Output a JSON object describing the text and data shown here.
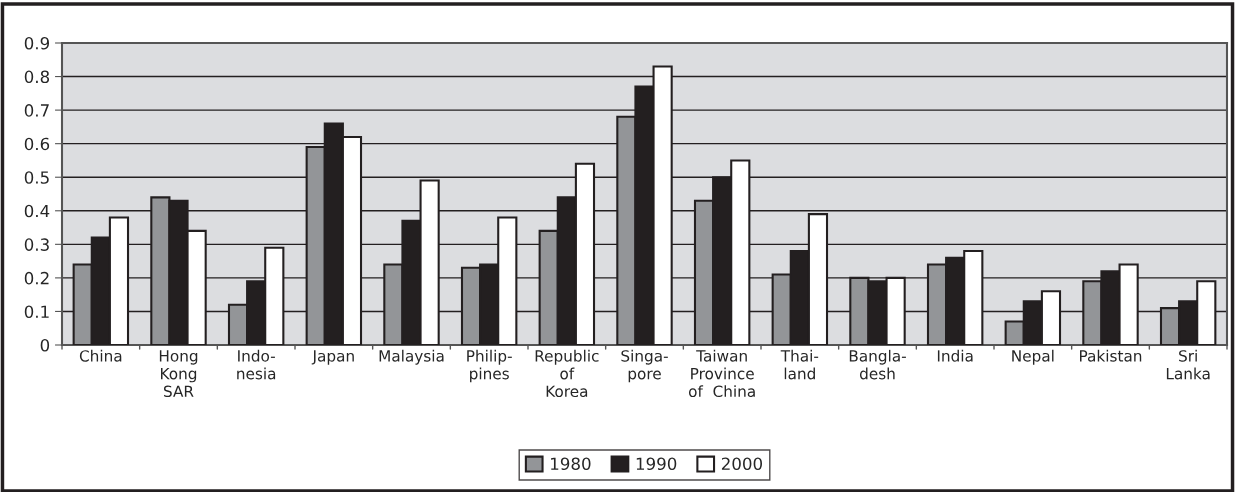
{
  "chart_data": {
    "type": "bar",
    "categories": [
      "China",
      "Hong\nKong\nSAR",
      "Indo-\nnesia",
      "Japan",
      "Malaysia",
      "Philip-\npines",
      "Republic\nof\nKorea",
      "Singa-\npore",
      "Taiwan\nProvince\nof  China",
      "Thai-\nland",
      "Bangla-\ndesh",
      "India",
      "Nepal",
      "Pakistan",
      "Sri\nLanka"
    ],
    "series": [
      {
        "name": "1980",
        "color": "#939598",
        "values": [
          0.24,
          0.44,
          0.12,
          0.59,
          0.24,
          0.23,
          0.34,
          0.68,
          0.43,
          0.21,
          0.2,
          0.24,
          0.07,
          0.19,
          0.11
        ]
      },
      {
        "name": "1990",
        "color": "#231f20",
        "values": [
          0.32,
          0.43,
          0.19,
          0.66,
          0.37,
          0.24,
          0.44,
          0.77,
          0.5,
          0.28,
          0.19,
          0.26,
          0.13,
          0.22,
          0.13
        ]
      },
      {
        "name": "2000",
        "color": "#ffffff",
        "values": [
          0.38,
          0.34,
          0.29,
          0.62,
          0.49,
          0.38,
          0.54,
          0.83,
          0.55,
          0.39,
          0.2,
          0.28,
          0.16,
          0.24,
          0.19
        ]
      }
    ],
    "ylim": [
      0,
      0.9
    ],
    "yticks": [
      0,
      0.1,
      0.2,
      0.3,
      0.4,
      0.5,
      0.6,
      0.7,
      0.8,
      0.9
    ],
    "grid": "y",
    "legend": "bottom"
  }
}
